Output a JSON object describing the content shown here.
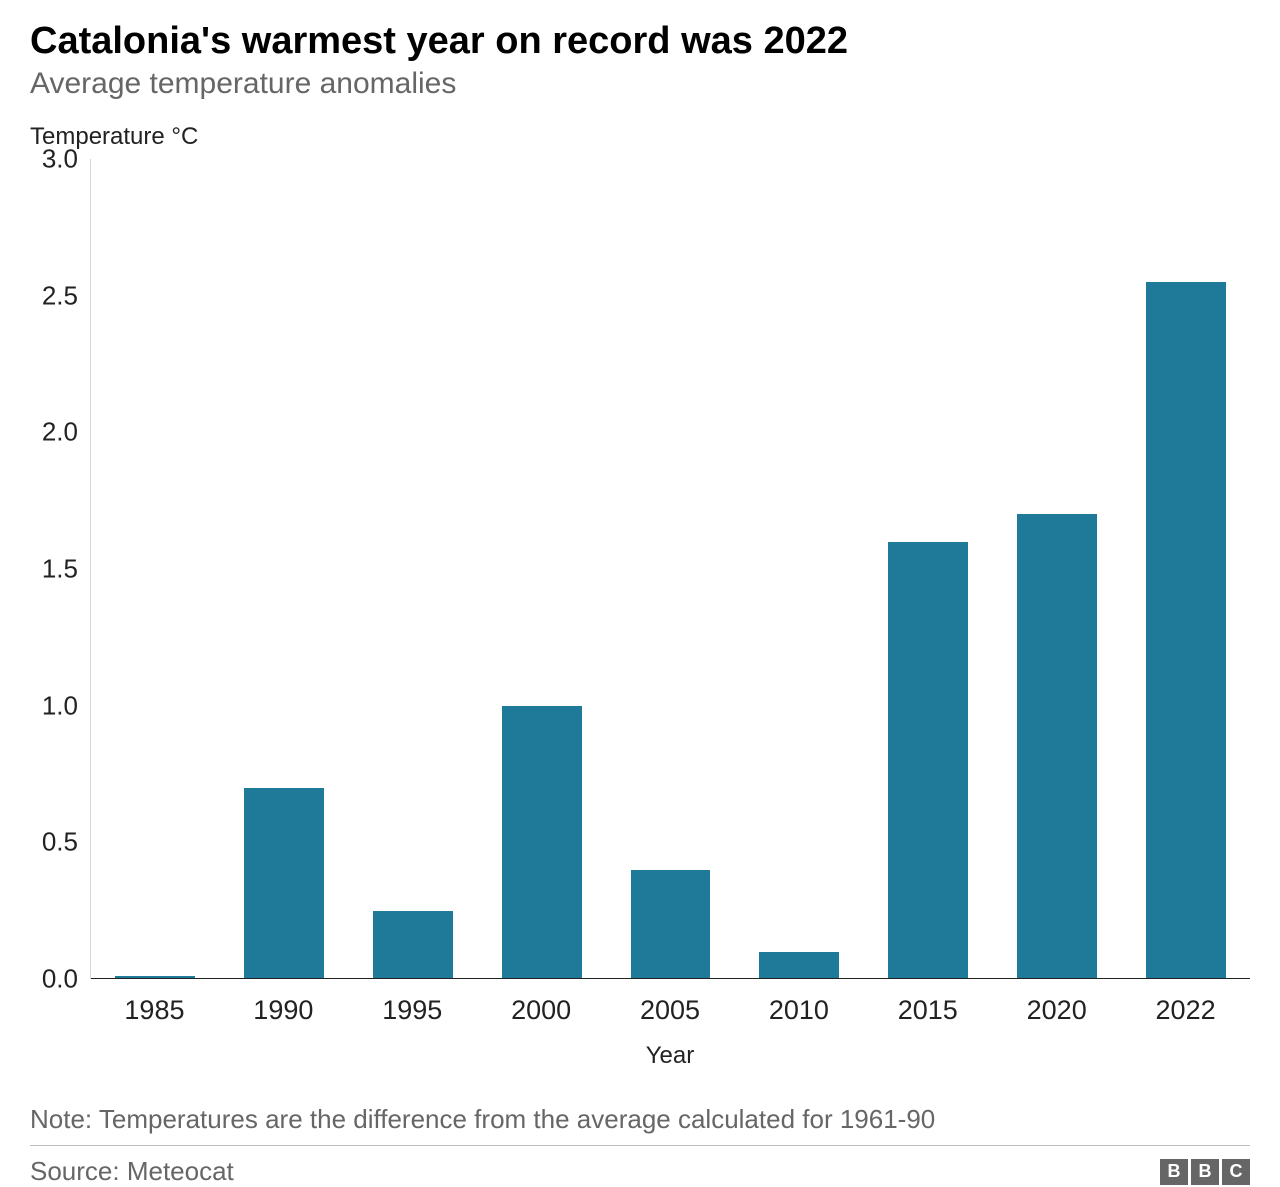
{
  "chart": {
    "type": "bar",
    "title": "Catalonia's warmest year on record was 2022",
    "subtitle": "Average temperature anomalies",
    "y_axis_title": "Temperature °C",
    "x_axis_title": "Year",
    "categories": [
      "1985",
      "1990",
      "1995",
      "2000",
      "2005",
      "2010",
      "2015",
      "2020",
      "2022"
    ],
    "values": [
      0.01,
      0.7,
      0.25,
      1.0,
      0.4,
      0.1,
      1.6,
      1.7,
      2.55
    ],
    "bar_color": "#1f7a99",
    "background_color": "#ffffff",
    "axis_line_color": "#d9d9d9",
    "baseline_color": "#222222",
    "ylim": [
      0.0,
      3.0
    ],
    "ytick_step": 0.5,
    "y_ticks": [
      "0.0",
      "0.5",
      "1.0",
      "1.5",
      "2.0",
      "2.5",
      "3.0"
    ],
    "bar_width_ratio": 0.62,
    "title_fontsize": 38,
    "subtitle_fontsize": 30,
    "subtitle_color": "#666666",
    "tick_fontsize": 26,
    "axis_title_fontsize": 24
  },
  "footer": {
    "note": "Note: Temperatures are the difference from the average calculated for 1961-90",
    "source": "Source: Meteocat",
    "note_color": "#666666",
    "divider_color": "#bdbdbd",
    "logo_letters": [
      "B",
      "B",
      "C"
    ],
    "logo_box_color": "#666666",
    "logo_text_color": "#ffffff"
  }
}
